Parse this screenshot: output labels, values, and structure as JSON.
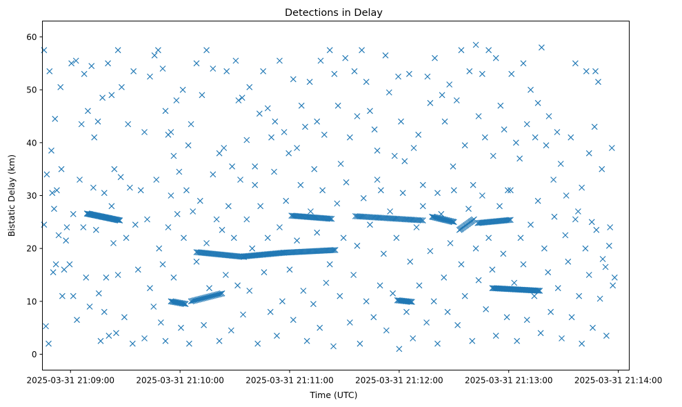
{
  "chart_data": {
    "type": "scatter",
    "title": "Detections in Delay",
    "xlabel": "Time (UTC)",
    "ylabel": "Bistatic Delay (km)",
    "marker": "x",
    "color": "#1f77b4",
    "grid": false,
    "x_unit": "seconds after 2025-03-31 21:08:45 UTC",
    "xlim": [
      -0.4,
      321
    ],
    "ylim": [
      -3,
      63
    ],
    "x_ticks": [
      {
        "value": 15,
        "label": "2025-03-31 21:09:00"
      },
      {
        "value": 75,
        "label": "2025-03-31 21:10:00"
      },
      {
        "value": 135,
        "label": "2025-03-31 21:11:00"
      },
      {
        "value": 195,
        "label": "2025-03-31 21:12:00"
      },
      {
        "value": 255,
        "label": "2025-03-31 21:13:00"
      },
      {
        "value": 315,
        "label": "2025-03-31 21:14:00"
      }
    ],
    "y_ticks": [
      0,
      10,
      20,
      30,
      40,
      50,
      60
    ],
    "tracks": [
      {
        "x": [
          24,
          42
        ],
        "y": [
          26.6,
          25.3
        ],
        "n": 40
      },
      {
        "x": [
          70,
          78
        ],
        "y": [
          10.0,
          9.5
        ],
        "n": 14
      },
      {
        "x": [
          81,
          98
        ],
        "y": [
          10.0,
          11.5
        ],
        "n": 24
      },
      {
        "x": [
          84,
          110
        ],
        "y": [
          19.3,
          18.4
        ],
        "n": 36
      },
      {
        "x": [
          110,
          132
        ],
        "y": [
          18.5,
          19.2
        ],
        "n": 34
      },
      {
        "x": [
          132,
          160
        ],
        "y": [
          19.2,
          19.7
        ],
        "n": 38
      },
      {
        "x": [
          136,
          158
        ],
        "y": [
          26.2,
          25.6
        ],
        "n": 32
      },
      {
        "x": [
          194,
          202
        ],
        "y": [
          10.2,
          9.9
        ],
        "n": 14
      },
      {
        "x": [
          213,
          225
        ],
        "y": [
          26.0,
          25.0
        ],
        "n": 22
      },
      {
        "x": [
          228,
          236
        ],
        "y": [
          23.5,
          25.5
        ],
        "n": 16
      },
      {
        "x": [
          238,
          256
        ],
        "y": [
          24.8,
          25.4
        ],
        "n": 26
      },
      {
        "x": [
          246,
          272
        ],
        "y": [
          12.5,
          12.0
        ],
        "n": 44
      },
      {
        "x": [
          171,
          208
        ],
        "y": [
          26.1,
          25.3
        ],
        "n": 46
      }
    ],
    "points": [
      [
        0.5,
        57.5
      ],
      [
        1.5,
        5.3
      ],
      [
        3.5,
        53.5
      ],
      [
        4.5,
        38.5
      ],
      [
        5.5,
        15.5
      ],
      [
        6.5,
        44.5
      ],
      [
        7.5,
        31
      ],
      [
        9.5,
        50.5
      ],
      [
        10.5,
        11
      ],
      [
        12.5,
        21.5
      ],
      [
        15.5,
        55
      ],
      [
        16.5,
        11
      ],
      [
        18,
        55.5
      ],
      [
        21,
        43.5
      ],
      [
        22.5,
        53
      ],
      [
        24.5,
        46
      ],
      [
        26.5,
        54.5
      ],
      [
        28,
        41
      ],
      [
        30,
        44
      ],
      [
        32.5,
        48.5
      ],
      [
        33.5,
        30.5
      ],
      [
        35.5,
        55
      ],
      [
        37.5,
        49
      ],
      [
        39,
        35
      ],
      [
        41,
        57.5
      ],
      [
        43,
        50.5
      ],
      [
        46.5,
        43.5
      ],
      [
        49.5,
        53.5
      ],
      [
        55.5,
        42
      ],
      [
        58.5,
        52.5
      ],
      [
        61,
        56.5
      ],
      [
        63,
        57.5
      ],
      [
        65.5,
        54
      ],
      [
        67,
        46
      ],
      [
        68.5,
        41.5
      ],
      [
        70,
        42
      ],
      [
        71.5,
        37.5
      ],
      [
        73,
        48
      ],
      [
        74.5,
        34.5
      ],
      [
        76.5,
        50
      ],
      [
        79.5,
        39.5
      ],
      [
        81,
        43.5
      ],
      [
        84,
        55
      ],
      [
        87,
        49
      ],
      [
        89.5,
        57.5
      ],
      [
        93,
        54
      ],
      [
        96.5,
        38
      ],
      [
        99,
        39
      ],
      [
        100.5,
        53.5
      ],
      [
        103.5,
        35.5
      ],
      [
        105.5,
        55.5
      ],
      [
        107,
        48
      ],
      [
        109,
        48.5
      ],
      [
        111.5,
        40.5
      ],
      [
        113,
        50.5
      ],
      [
        116,
        35.5
      ],
      [
        118.5,
        45.5
      ],
      [
        120.5,
        53.5
      ],
      [
        123,
        46.5
      ],
      [
        125,
        41
      ],
      [
        127,
        44
      ],
      [
        129.5,
        55.5
      ],
      [
        132,
        42
      ],
      [
        134.5,
        38
      ],
      [
        137,
        52
      ],
      [
        139,
        39
      ],
      [
        141.5,
        47
      ],
      [
        143.5,
        43
      ],
      [
        146,
        51.5
      ],
      [
        148.5,
        35
      ],
      [
        150,
        44
      ],
      [
        152,
        55.5
      ],
      [
        154,
        41.5
      ],
      [
        157,
        57.5
      ],
      [
        159.5,
        53
      ],
      [
        161.5,
        47
      ],
      [
        163,
        36
      ],
      [
        165.5,
        56
      ],
      [
        168,
        41
      ],
      [
        170.5,
        53.5
      ],
      [
        172,
        45
      ],
      [
        174.5,
        57.5
      ],
      [
        177,
        51.5
      ],
      [
        179,
        46
      ],
      [
        181.5,
        42.5
      ],
      [
        183,
        38.5
      ],
      [
        185,
        31
      ],
      [
        187.5,
        56.5
      ],
      [
        189.5,
        49.5
      ],
      [
        192.5,
        37.5
      ],
      [
        194.5,
        52.5
      ],
      [
        196,
        44
      ],
      [
        198,
        36.5
      ],
      [
        200.5,
        53
      ],
      [
        203,
        39
      ],
      [
        205.5,
        41.5
      ],
      [
        208,
        32
      ],
      [
        210.5,
        52.5
      ],
      [
        212,
        47.5
      ],
      [
        214.5,
        56
      ],
      [
        216,
        30.5
      ],
      [
        218.5,
        49
      ],
      [
        220,
        44
      ],
      [
        222.5,
        51
      ],
      [
        224.5,
        35.5
      ],
      [
        226.5,
        48
      ],
      [
        229,
        57.5
      ],
      [
        231,
        39.5
      ],
      [
        233.5,
        53.5
      ],
      [
        235.5,
        32
      ],
      [
        237,
        58.5
      ],
      [
        238.5,
        45
      ],
      [
        240.5,
        53
      ],
      [
        242,
        41
      ],
      [
        244,
        57.5
      ],
      [
        246.5,
        37.5
      ],
      [
        248,
        56
      ],
      [
        250.5,
        47
      ],
      [
        252.5,
        42.5
      ],
      [
        254.5,
        31
      ],
      [
        256.5,
        53
      ],
      [
        259,
        40
      ],
      [
        261,
        37
      ],
      [
        263,
        55
      ],
      [
        265,
        43.5
      ],
      [
        267,
        50
      ],
      [
        269.5,
        41
      ],
      [
        271,
        47.5
      ],
      [
        273,
        58
      ],
      [
        275.5,
        39.5
      ],
      [
        277,
        45
      ],
      [
        279.5,
        33
      ],
      [
        281.5,
        42
      ],
      [
        283.5,
        36
      ],
      [
        286.5,
        30
      ],
      [
        289,
        41
      ],
      [
        291.5,
        55
      ],
      [
        293,
        27
      ],
      [
        295,
        31.5
      ],
      [
        297.5,
        53.5
      ],
      [
        299,
        38
      ],
      [
        300.5,
        25
      ],
      [
        302,
        43
      ],
      [
        304,
        51.5
      ],
      [
        306,
        35
      ],
      [
        308,
        16.5
      ],
      [
        310,
        20.5
      ],
      [
        311.5,
        39
      ],
      [
        313,
        14.5
      ],
      [
        302.5,
        53.5
      ],
      [
        0.5,
        24.5
      ],
      [
        2,
        34
      ],
      [
        3,
        2
      ],
      [
        5,
        30.5
      ],
      [
        6,
        27.5
      ],
      [
        7,
        17
      ],
      [
        8.5,
        22.5
      ],
      [
        10,
        35
      ],
      [
        11.5,
        16
      ],
      [
        13,
        24
      ],
      [
        14.5,
        17
      ],
      [
        16.5,
        26.5
      ],
      [
        18.5,
        6.5
      ],
      [
        20,
        33
      ],
      [
        22,
        24
      ],
      [
        23.5,
        14.5
      ],
      [
        25.5,
        9
      ],
      [
        27.5,
        31.5
      ],
      [
        29,
        23.5
      ],
      [
        30.5,
        11.5
      ],
      [
        31.5,
        2.5
      ],
      [
        33.5,
        8
      ],
      [
        34.5,
        14.5
      ],
      [
        36,
        3.5
      ],
      [
        37.5,
        28
      ],
      [
        38.5,
        21
      ],
      [
        40,
        4
      ],
      [
        41,
        15
      ],
      [
        42.5,
        33.5
      ],
      [
        44.5,
        7
      ],
      [
        45.5,
        22
      ],
      [
        47.5,
        31.5
      ],
      [
        49,
        2
      ],
      [
        50.5,
        24.5
      ],
      [
        52,
        16
      ],
      [
        53.5,
        31
      ],
      [
        55.5,
        3
      ],
      [
        57,
        25.5
      ],
      [
        58.5,
        12.5
      ],
      [
        60.5,
        9
      ],
      [
        62,
        33
      ],
      [
        63.5,
        20
      ],
      [
        64.5,
        6
      ],
      [
        65.5,
        17
      ],
      [
        67,
        2.5
      ],
      [
        68.5,
        24
      ],
      [
        70,
        30
      ],
      [
        71.5,
        14.5
      ],
      [
        73.5,
        26.5
      ],
      [
        75.5,
        5
      ],
      [
        77,
        22
      ],
      [
        78.5,
        31
      ],
      [
        80,
        2
      ],
      [
        82,
        27
      ],
      [
        84,
        17.5
      ],
      [
        86,
        29
      ],
      [
        88,
        5.5
      ],
      [
        89.5,
        21
      ],
      [
        91,
        12.5
      ],
      [
        93,
        34
      ],
      [
        95,
        25.5
      ],
      [
        96.5,
        2.5
      ],
      [
        98,
        23.5
      ],
      [
        100,
        15
      ],
      [
        101.5,
        28
      ],
      [
        103,
        4.5
      ],
      [
        104.5,
        22
      ],
      [
        106.5,
        13
      ],
      [
        108,
        33
      ],
      [
        109.5,
        7.5
      ],
      [
        111.5,
        25.5
      ],
      [
        113,
        12
      ],
      [
        114.5,
        20
      ],
      [
        116,
        32
      ],
      [
        117.5,
        2
      ],
      [
        119,
        28
      ],
      [
        121,
        15.5
      ],
      [
        123,
        22
      ],
      [
        124.5,
        8
      ],
      [
        126.5,
        34.5
      ],
      [
        128,
        3.5
      ],
      [
        129.5,
        24
      ],
      [
        131,
        10
      ],
      [
        133,
        29
      ],
      [
        135,
        16
      ],
      [
        137,
        6.5
      ],
      [
        139,
        21.5
      ],
      [
        141,
        32
      ],
      [
        142.5,
        12
      ],
      [
        144.5,
        2.5
      ],
      [
        146.5,
        27
      ],
      [
        148,
        9.5
      ],
      [
        150,
        23
      ],
      [
        151.5,
        5
      ],
      [
        153,
        31
      ],
      [
        155,
        13.5
      ],
      [
        157,
        17
      ],
      [
        159,
        1.5
      ],
      [
        161,
        28.5
      ],
      [
        162.5,
        11
      ],
      [
        164.5,
        22
      ],
      [
        166,
        32.5
      ],
      [
        168,
        6
      ],
      [
        170,
        15
      ],
      [
        172,
        20.5
      ],
      [
        173.5,
        2
      ],
      [
        175.5,
        29.5
      ],
      [
        177,
        10
      ],
      [
        179,
        24.5
      ],
      [
        181,
        7
      ],
      [
        183,
        33
      ],
      [
        184.5,
        13
      ],
      [
        186.5,
        19
      ],
      [
        188,
        4.5
      ],
      [
        190,
        27
      ],
      [
        191.5,
        11.5
      ],
      [
        193.5,
        22
      ],
      [
        195,
        1
      ],
      [
        197,
        30.5
      ],
      [
        199,
        8
      ],
      [
        201,
        17.5
      ],
      [
        202.5,
        3
      ],
      [
        204.5,
        24
      ],
      [
        206,
        13
      ],
      [
        208,
        28
      ],
      [
        210,
        6
      ],
      [
        212,
        19.5
      ],
      [
        214,
        10
      ],
      [
        216,
        2
      ],
      [
        218,
        26.5
      ],
      [
        219.5,
        14.5
      ],
      [
        221.5,
        8
      ],
      [
        223,
        21
      ],
      [
        225,
        31
      ],
      [
        227,
        5.5
      ],
      [
        229,
        17
      ],
      [
        231,
        11
      ],
      [
        233,
        27.5
      ],
      [
        235,
        2.5
      ],
      [
        237,
        20
      ],
      [
        238.5,
        14
      ],
      [
        240.5,
        30
      ],
      [
        242.5,
        8.5
      ],
      [
        244,
        22
      ],
      [
        246,
        16
      ],
      [
        248,
        3.5
      ],
      [
        250,
        28
      ],
      [
        252,
        19
      ],
      [
        254,
        7
      ],
      [
        256,
        31
      ],
      [
        258,
        13.5
      ],
      [
        259.5,
        2.5
      ],
      [
        261.5,
        22
      ],
      [
        263,
        17
      ],
      [
        265,
        6.5
      ],
      [
        267,
        24.5
      ],
      [
        269,
        11
      ],
      [
        271,
        29
      ],
      [
        272.5,
        4
      ],
      [
        274.5,
        20
      ],
      [
        276.5,
        15.5
      ],
      [
        278,
        8
      ],
      [
        280,
        26
      ],
      [
        282,
        12.5
      ],
      [
        284,
        3
      ],
      [
        286,
        22.5
      ],
      [
        287.5,
        17.5
      ],
      [
        289.5,
        7
      ],
      [
        291.5,
        25.5
      ],
      [
        293.5,
        11
      ],
      [
        295,
        2
      ],
      [
        297,
        20
      ],
      [
        299,
        15
      ],
      [
        301,
        5
      ],
      [
        303,
        23.5
      ],
      [
        305,
        10.5
      ],
      [
        306.5,
        18
      ],
      [
        308.5,
        3.5
      ],
      [
        310.5,
        24
      ],
      [
        312,
        13
      ]
    ]
  }
}
